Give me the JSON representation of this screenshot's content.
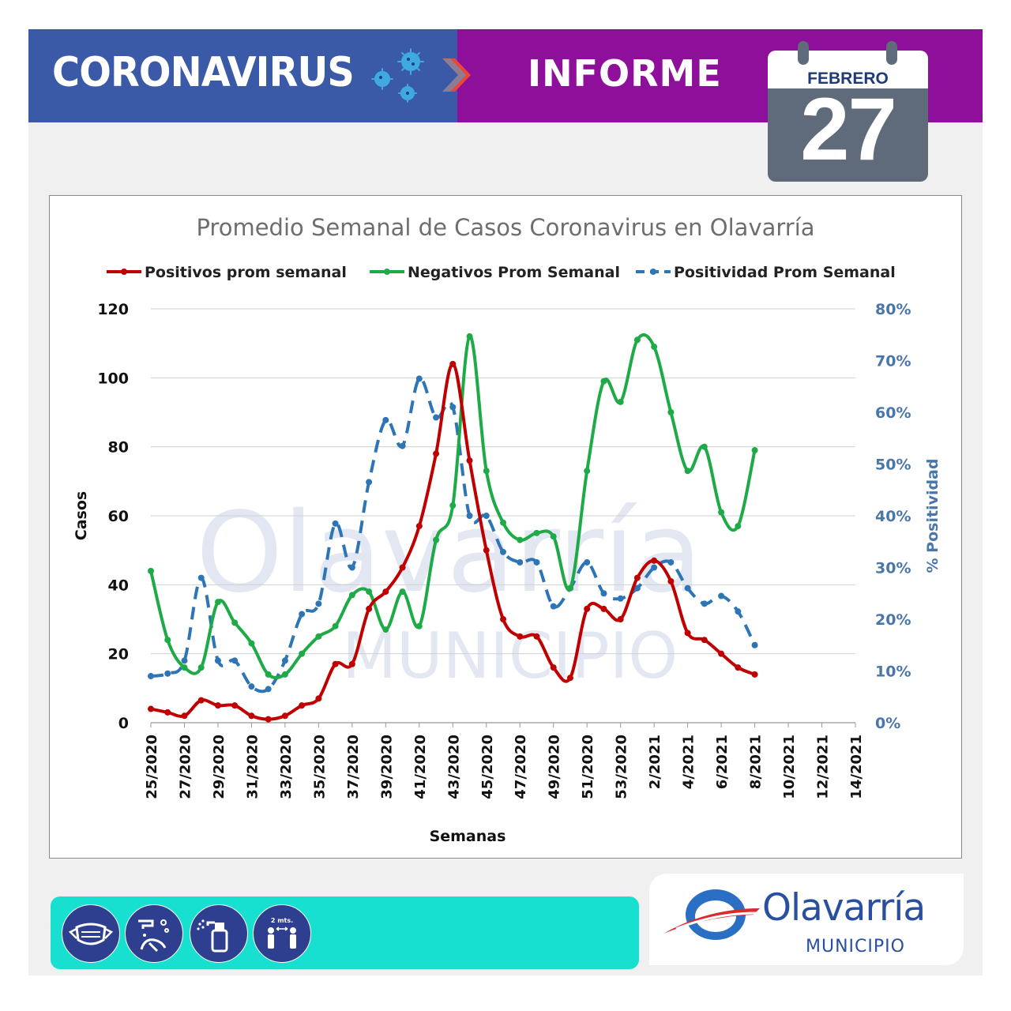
{
  "header": {
    "left_title": "CORONAVIRUS",
    "right_title": "INFORME",
    "left_color": "#3a59a6",
    "right_color": "#8e0f9a"
  },
  "calendar": {
    "month": "FEBRERO",
    "day": "27"
  },
  "chart_data": {
    "type": "line",
    "title": "Promedio Semanal de Casos Coronavirus en Olavarría",
    "xlabel": "Semanas",
    "ylabel": "Casos",
    "y2label": "% Positividad",
    "ylim": [
      0,
      120
    ],
    "y2lim": [
      0,
      0.8
    ],
    "yticks": [
      "0",
      "20",
      "40",
      "60",
      "80",
      "100",
      "120"
    ],
    "y2ticks": [
      "0%",
      "10%",
      "20%",
      "30%",
      "40%",
      "50%",
      "60%",
      "70%",
      "80%"
    ],
    "xticks": [
      "25/2020",
      "27/2020",
      "29/2020",
      "31/2020",
      "33/2020",
      "35/2020",
      "37/2020",
      "39/2020",
      "41/2020",
      "43/2020",
      "45/2020",
      "47/2020",
      "49/2020",
      "51/2020",
      "53/2020",
      "2/2021",
      "4/2021",
      "6/2021",
      "8/2021",
      "10/2021",
      "12/2021",
      "14/2021"
    ],
    "grid": true,
    "legend_position": "top",
    "series": [
      {
        "name": "Positivos prom semanal",
        "axis": "left",
        "color": "#c00000",
        "dash": false,
        "values": [
          4,
          3,
          2,
          6.5,
          5,
          5,
          2,
          1,
          2,
          5,
          7,
          17,
          17,
          33,
          38,
          45,
          57,
          78,
          104,
          76,
          50,
          30,
          25,
          25,
          16,
          13,
          33,
          33,
          30,
          42,
          47,
          41,
          26,
          24,
          20,
          16,
          14
        ]
      },
      {
        "name": "Negativos Prom Semanal",
        "axis": "left",
        "color": "#1faa48",
        "dash": false,
        "values": [
          44,
          24,
          16,
          16,
          35,
          29,
          23,
          14,
          14,
          20,
          25,
          28,
          37,
          38,
          27,
          38,
          28,
          53,
          63,
          112,
          73,
          58,
          53,
          55,
          54,
          39,
          73,
          99,
          93,
          111,
          109,
          90,
          73,
          80,
          61,
          57,
          79
        ]
      },
      {
        "name": "Positividad Prom Semanal",
        "axis": "right",
        "color": "#2e75b6",
        "dash": true,
        "values": [
          0.09,
          0.095,
          0.12,
          0.28,
          0.12,
          0.12,
          0.07,
          0.065,
          0.12,
          0.21,
          0.23,
          0.385,
          0.3,
          0.465,
          0.585,
          0.535,
          0.665,
          0.59,
          0.61,
          0.4,
          0.4,
          0.33,
          0.31,
          0.31,
          0.225,
          0.26,
          0.31,
          0.25,
          0.24,
          0.26,
          0.3,
          0.31,
          0.26,
          0.23,
          0.245,
          0.215,
          0.15
        ]
      }
    ]
  },
  "footer": {
    "distance_label": "2 mts."
  },
  "logo": {
    "name": "Olavarría",
    "subtitle": "MUNICIPIO"
  }
}
